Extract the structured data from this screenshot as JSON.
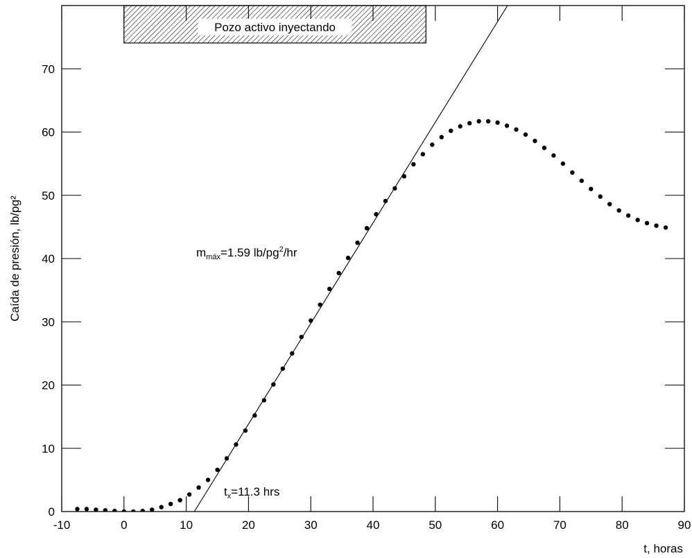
{
  "chart_data": {
    "type": "scatter",
    "xlabel": "t, horas",
    "ylabel": "Caída de presión, lb/pg²",
    "xlim": [
      -10,
      90
    ],
    "ylim": [
      0,
      80
    ],
    "xticks": [
      -10,
      0,
      10,
      20,
      30,
      40,
      50,
      60,
      70,
      80,
      90
    ],
    "yticks": [
      0,
      10,
      20,
      30,
      40,
      50,
      60,
      70
    ],
    "grid": false,
    "points": {
      "x": [
        -7.5,
        -6,
        -4.5,
        -3,
        -1.5,
        0,
        1.5,
        3,
        4.5,
        6,
        7.5,
        9,
        10.5,
        12,
        13.5,
        15,
        16.5,
        18,
        19.5,
        21,
        22.5,
        24,
        25.5,
        27,
        28.5,
        30,
        31.5,
        33,
        34.5,
        36,
        37.5,
        39,
        40.5,
        42,
        43.5,
        45,
        46.5,
        48,
        49.5,
        51,
        52.5,
        54,
        55.5,
        57,
        58.5,
        60,
        61.5,
        63,
        64.5,
        66,
        67.5,
        69,
        70.5,
        72,
        73.5,
        75,
        76.5,
        78,
        79.5,
        81,
        82.5,
        84,
        85.5,
        87
      ],
      "y": [
        0.4,
        0.4,
        0.3,
        0.2,
        0.1,
        0.0,
        0.0,
        0.1,
        0.3,
        0.7,
        1.2,
        1.8,
        2.7,
        3.8,
        5.0,
        6.6,
        8.4,
        10.6,
        12.8,
        15.2,
        17.6,
        20.1,
        22.6,
        25.0,
        27.6,
        30.2,
        32.7,
        35.2,
        37.7,
        40.1,
        42.5,
        44.8,
        47.0,
        49.1,
        51.1,
        53.0,
        54.9,
        56.5,
        58.0,
        59.2,
        60.2,
        60.9,
        61.4,
        61.7,
        61.7,
        61.5,
        61.0,
        60.4,
        59.6,
        58.6,
        57.5,
        56.3,
        55.0,
        53.6,
        52.3,
        51.0,
        49.8,
        48.6,
        47.6,
        46.8,
        46.1,
        45.6,
        45.2,
        44.9
      ]
    },
    "trend_line": {
      "x": [
        11.3,
        61.6
      ],
      "y": [
        0,
        80
      ]
    },
    "injection_period": {
      "x_start": 0,
      "x_end": 48.5,
      "label": "Pozo activo inyectando"
    },
    "annotations": {
      "slope_base": "m",
      "slope_sub": "máx",
      "slope_value": "=1.59 lb/pg",
      "slope_sup": "2",
      "slope_unit": "/hr",
      "tx_base": "t",
      "tx_sub": "x",
      "tx_value": "=11.3 hrs"
    }
  }
}
